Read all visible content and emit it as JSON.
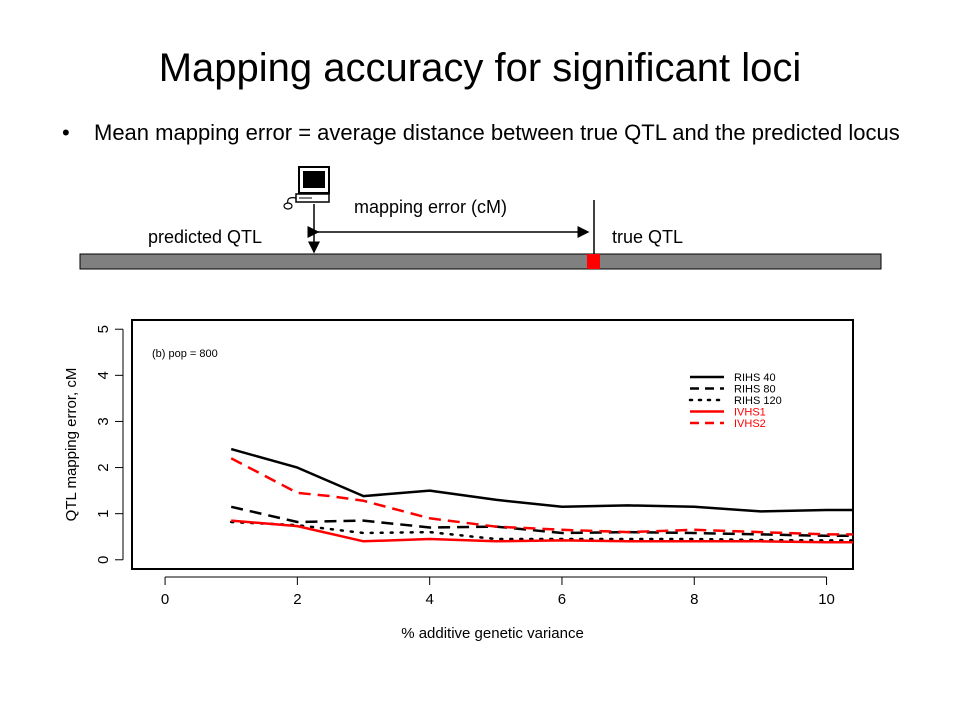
{
  "slide": {
    "title": "Mapping accuracy for significant loci",
    "bullet_marker": "•",
    "bullet_text": "Mean mapping error = average distance between true QTL and the predicted locus"
  },
  "diagram": {
    "predicted_label": "predicted QTL",
    "true_label": "true QTL",
    "error_label": "mapping error (cM)",
    "icon": "computer-icon",
    "chromosome_color": "#808080",
    "qtl_color": "#ff0000"
  },
  "chart_data": {
    "type": "line",
    "annotation": "(b) pop = 800",
    "xlabel": "% additive genetic variance",
    "ylabel": "QTL mapping error, cM",
    "xlim": [
      -0.5,
      10.4
    ],
    "ylim": [
      -0.2,
      5.2
    ],
    "x_ticks": [
      0,
      2,
      4,
      6,
      8,
      10
    ],
    "y_ticks": [
      0,
      1,
      2,
      3,
      4,
      5
    ],
    "legend_position": "top-right",
    "grid": false,
    "series": [
      {
        "name": "RIHS 40",
        "color": "#000000",
        "dash": "solid",
        "x": [
          1,
          2,
          3,
          4,
          5,
          6,
          7,
          8,
          9,
          10,
          10.4
        ],
        "y": [
          2.4,
          2.0,
          1.38,
          1.5,
          1.3,
          1.15,
          1.18,
          1.15,
          1.05,
          1.08,
          1.08
        ]
      },
      {
        "name": "RIHS 80",
        "color": "#000000",
        "dash": "dashed",
        "x": [
          1,
          2,
          3,
          4,
          5,
          6,
          7,
          8,
          9,
          10,
          10.4
        ],
        "y": [
          1.15,
          0.82,
          0.85,
          0.7,
          0.72,
          0.58,
          0.6,
          0.58,
          0.55,
          0.52,
          0.52
        ]
      },
      {
        "name": "RIHS 120",
        "color": "#000000",
        "dash": "dotted",
        "x": [
          1,
          2,
          3,
          4,
          5,
          6,
          7,
          8,
          9,
          10,
          10.4
        ],
        "y": [
          0.82,
          0.75,
          0.58,
          0.6,
          0.45,
          0.45,
          0.45,
          0.45,
          0.43,
          0.42,
          0.42
        ]
      },
      {
        "name": "IVHS1",
        "color": "#ff0000",
        "dash": "solid",
        "x": [
          1,
          2,
          3,
          4,
          5,
          6,
          7,
          8,
          9,
          10,
          10.4
        ],
        "y": [
          0.85,
          0.73,
          0.4,
          0.45,
          0.4,
          0.42,
          0.4,
          0.4,
          0.4,
          0.38,
          0.38
        ]
      },
      {
        "name": "IVHS2",
        "color": "#ff0000",
        "dash": "dashed",
        "x": [
          1,
          2,
          2.5,
          3,
          4,
          5,
          6,
          7,
          8,
          9,
          10,
          10.4
        ],
        "y": [
          2.2,
          1.45,
          1.38,
          1.28,
          0.9,
          0.72,
          0.65,
          0.6,
          0.65,
          0.6,
          0.55,
          0.55
        ]
      }
    ]
  }
}
